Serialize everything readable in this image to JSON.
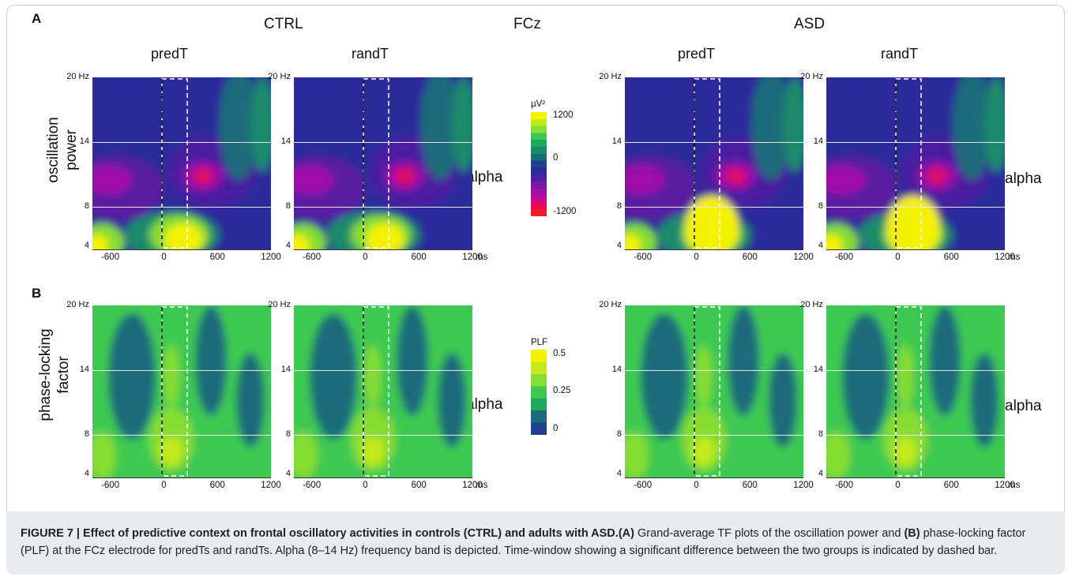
{
  "panels": {
    "a": "A",
    "b": "B"
  },
  "electrode": "FCz",
  "groups": {
    "ctrl": "CTRL",
    "asd": "ASD"
  },
  "conditions": {
    "pred": "predT",
    "rand": "randT"
  },
  "row_labels": {
    "power": "oscillation\npower",
    "plf": "phase-locking\nfactor"
  },
  "band_label": "alpha",
  "y_ticks": {
    "top": "20 Hz",
    "mid": "14",
    "low": "8",
    "bottom": "4"
  },
  "x_ticks": [
    "-600",
    "0",
    "600",
    "1200"
  ],
  "x_unit": "ms",
  "colorbar_power": {
    "unit": "µV²",
    "labels": [
      "1200",
      "0",
      "-1200"
    ],
    "colors": [
      "#f5f200",
      "#c4ea1a",
      "#86dd33",
      "#3dc951",
      "#1eaa5c",
      "#1a8a6a",
      "#1a6a7a",
      "#22408f",
      "#2a2a9a",
      "#4a1fa0",
      "#7a16a8",
      "#a010a8",
      "#c40a90",
      "#e60a55",
      "#f01a2a"
    ]
  },
  "colorbar_plf": {
    "unit": "PLF",
    "labels": [
      "0.5",
      "0.25",
      "0"
    ],
    "colors": [
      "#f5f200",
      "#c4ea1a",
      "#86dd33",
      "#3dc951",
      "#1eaa5c",
      "#1a6a7a",
      "#22408f"
    ]
  },
  "caption": {
    "lead": "FIGURE 7 | Effect of predictive context on frontal oscillatory activities in controls (CTRL) and adults with ASD.",
    "a_marker": "(A)",
    "text1": " Grand-average TF plots of the oscillation power and ",
    "b_marker": "(B)",
    "text2": " phase-locking factor (PLF) at the FCz electrode for predTs and randTs. Alpha (8–14 Hz) frequency band is depicted. Time-window showing a significant difference between the two groups is indicated by dashed bar."
  }
}
